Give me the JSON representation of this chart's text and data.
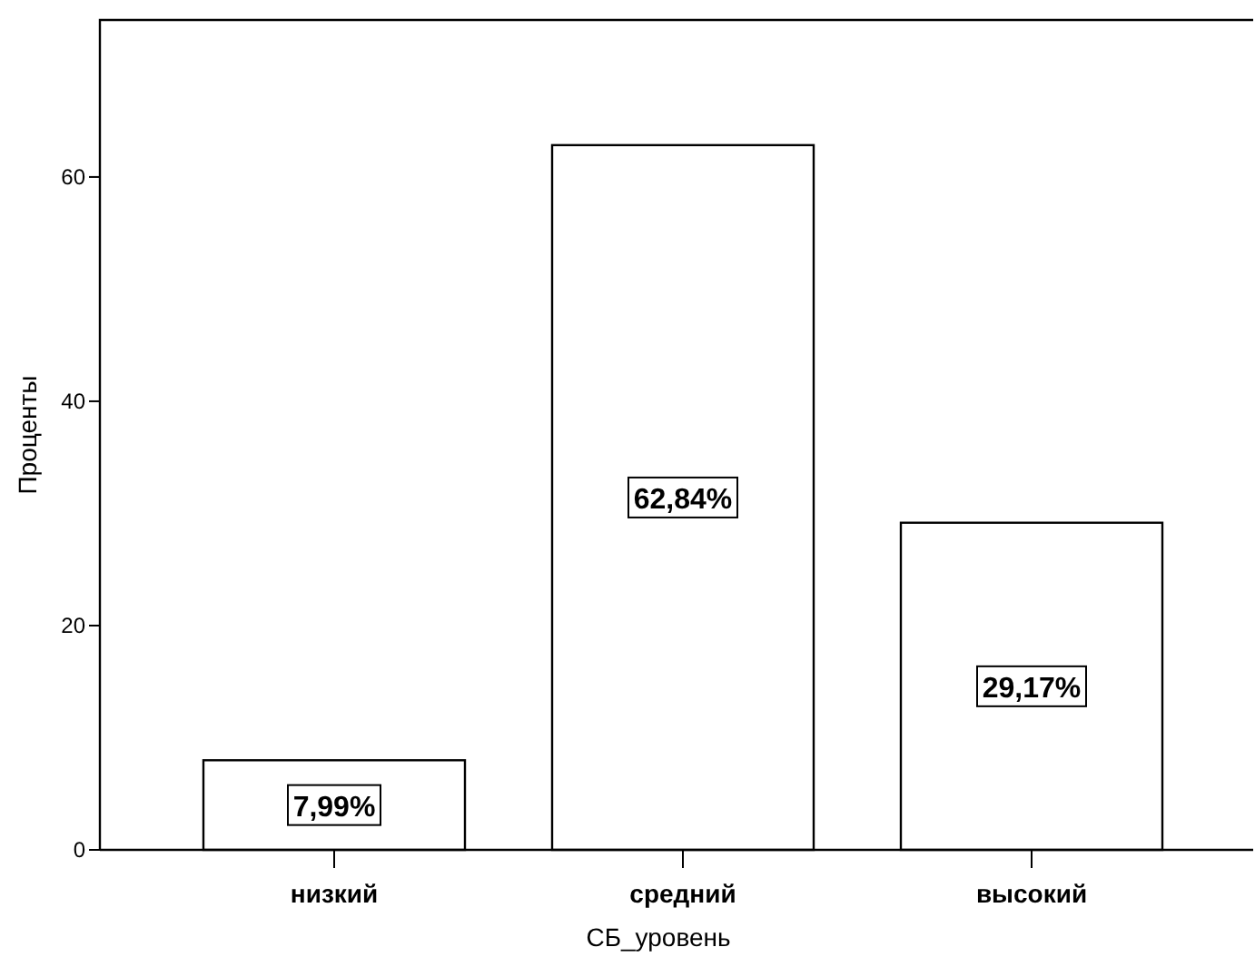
{
  "chart_data": {
    "type": "bar",
    "categories": [
      "низкий",
      "средний",
      "высокий"
    ],
    "values": [
      7.99,
      62.84,
      29.17
    ],
    "value_labels": [
      "7,99%",
      "62,84%",
      "29,17%"
    ],
    "color": "#ffffff",
    "xlabel": "СБ_уровень",
    "ylabel": "Проценты",
    "ylim": [
      0,
      74
    ],
    "yticks": [
      0,
      20,
      40,
      60
    ],
    "grid": false
  }
}
